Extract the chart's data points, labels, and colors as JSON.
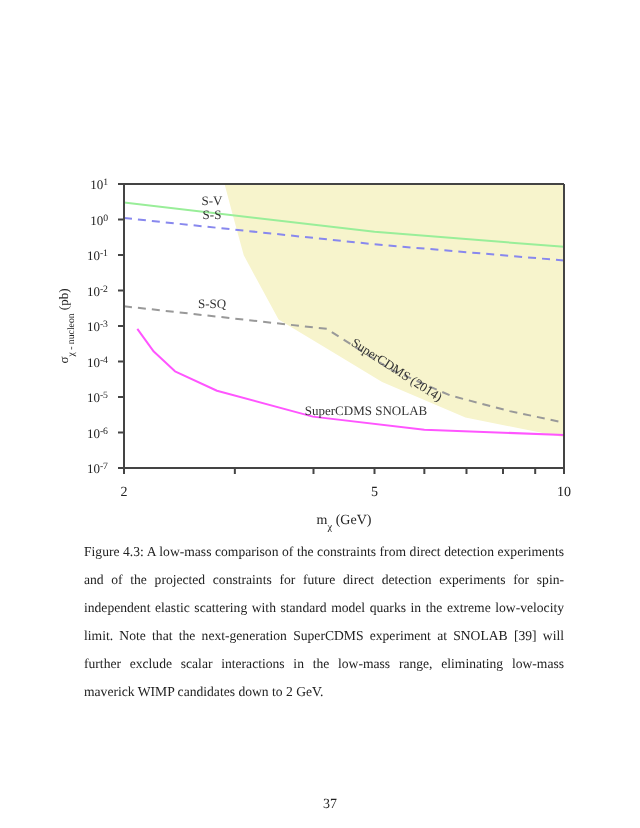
{
  "chart_data": {
    "type": "line",
    "xlabel": "m$_{χ}$ (GeV)",
    "ylabel": "σ$_{χ - nucleon}$ (pb)",
    "log": "xy",
    "grid": false,
    "legend": false,
    "marker": "none",
    "xlim": [
      2,
      10
    ],
    "xticks": [
      2,
      {
        "value": 3,
        "label": null
      },
      {
        "value": 4,
        "label": null
      },
      5,
      {
        "value": 6,
        "label": null
      },
      {
        "value": 7,
        "label": null
      },
      {
        "value": 8,
        "label": null
      },
      {
        "value": 9,
        "label": null
      },
      10
    ],
    "ylim": [
      1e-07,
      10
    ],
    "yticks": [
      {
        "value": 1e-07,
        "label": "10$^{-7}$"
      },
      {
        "value": 1e-06,
        "label": "10$^{-6}$"
      },
      {
        "value": 1e-05,
        "label": "10$^{-5}$"
      },
      {
        "value": 0.0001,
        "label": "10$^{-4}$"
      },
      {
        "value": 0.001,
        "label": "10$^{-3}$"
      },
      {
        "value": 0.01,
        "label": "10$^{-2}$"
      },
      {
        "value": 0.1,
        "label": "10$^{-1}$"
      },
      {
        "value": 1,
        "label": "10$^{0}$"
      },
      {
        "value": 10,
        "label": "10$^{1}$"
      }
    ],
    "series": [
      {
        "name": "SuperCDMS (2014)",
        "type": "area",
        "color": "#f7f4cc",
        "x": [
          2.9,
          2.99,
          3.11,
          3.53,
          4.31,
          5.15,
          6.98,
          10,
          10
        ],
        "values": [
          10,
          1.3,
          0.1,
          0.0016,
          0.00019,
          2.8e-05,
          2.8e-06,
          7.9e-07,
          10
        ]
      },
      {
        "name": "S-V",
        "type": "line",
        "color": "#99ee99",
        "line_style": "solid",
        "x": [
          2,
          5,
          10
        ],
        "values": [
          3,
          0.45,
          0.17
        ]
      },
      {
        "name": "S-S",
        "type": "line",
        "color": "#8888ee",
        "line_style": "dashed",
        "x": [
          2,
          5,
          10
        ],
        "values": [
          1.1,
          0.2,
          0.07
        ]
      },
      {
        "name": "S-SQ",
        "type": "line",
        "color": "#999999",
        "line_style": "dashed",
        "x": [
          2,
          4.2,
          5.3,
          6.6,
          8.2,
          10
        ],
        "values": [
          0.0036,
          0.00083,
          6e-05,
          1.1e-05,
          4e-06,
          1.9e-06
        ]
      },
      {
        "name": "SuperCDMS SNOLAB",
        "type": "line",
        "color": "#ff55ff",
        "line_style": "solid",
        "x": [
          2.1,
          2.23,
          2.41,
          2.81,
          3.99,
          6,
          10
        ],
        "values": [
          0.00083,
          0.00019,
          5.3e-05,
          1.5e-05,
          2.8e-06,
          1.2e-06,
          8.5e-07
        ]
      }
    ],
    "annotations": [
      "Figure 4.3: A low-mass comparison of the constraints from direct detection experiments and of the projected constraints for future direct detection experiments for spin-independent elastic scattering with standard model quarks in the extreme low-velocity limit. Note that the next-generation SuperCDMS experiment at SNOLAB [39] will further exclude scalar interactions in the low-mass range, eliminating low-mass maverick WIMP candidates down to 2 GeV.",
      "37"
    ]
  }
}
